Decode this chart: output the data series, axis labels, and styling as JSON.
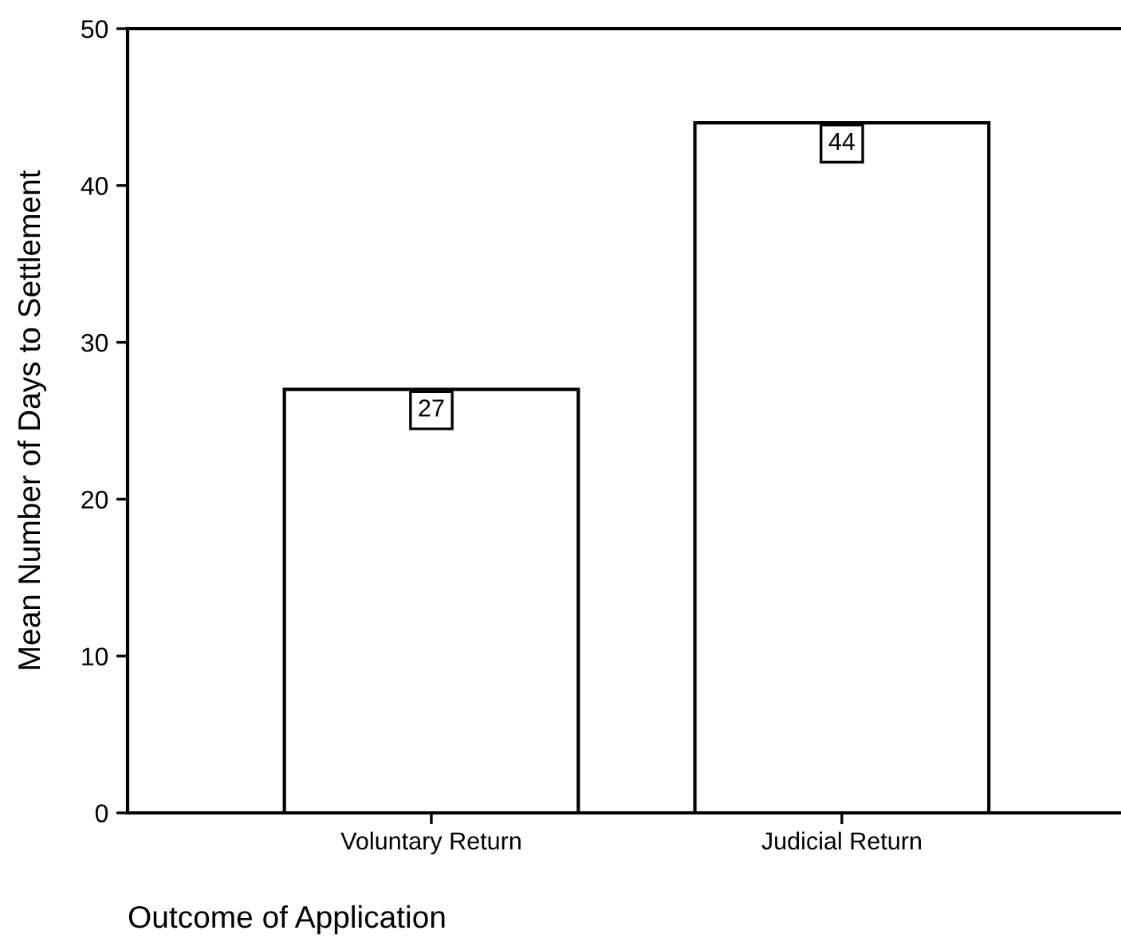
{
  "chart_data": {
    "type": "bar",
    "categories": [
      "Voluntary Return",
      "Judicial Return"
    ],
    "values": [
      27,
      44
    ],
    "color": "#ffffff",
    "ylim": [
      0,
      50
    ],
    "yticks": [
      0,
      10,
      20,
      30,
      40,
      50
    ],
    "ylabel": "Mean Number of Days to Settlement",
    "xlabel": "Outcome of Application",
    "data_labels": true,
    "grid": false,
    "legend": false
  }
}
